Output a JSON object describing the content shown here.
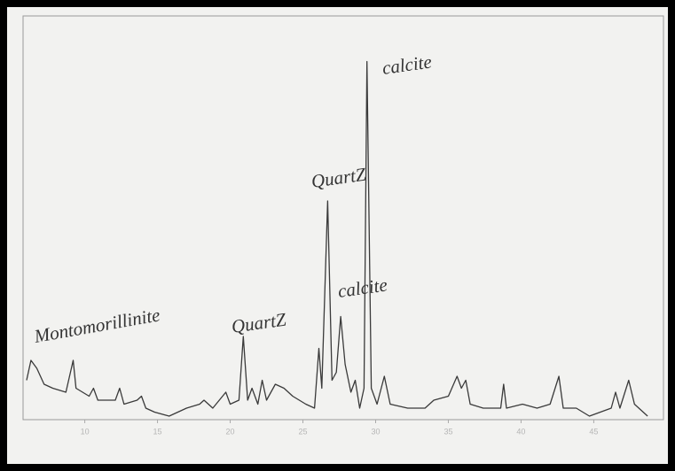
{
  "chart_data": {
    "type": "line",
    "annotations": [
      "Montomorillinite",
      "QuartZ",
      "QuartZ",
      "calcite",
      "calcite"
    ],
    "x": [
      6.0,
      6.3,
      6.7,
      7.2,
      7.8,
      8.7,
      9.2,
      9.4,
      10.3,
      10.6,
      10.9,
      12.1,
      12.4,
      12.7,
      13.6,
      13.9,
      14.2,
      14.8,
      15.8,
      17.0,
      17.9,
      18.2,
      18.8,
      19.7,
      20.0,
      20.6,
      20.9,
      21.2,
      21.5,
      21.9,
      22.2,
      22.5,
      23.1,
      23.7,
      24.3,
      25.2,
      25.8,
      26.1,
      26.3,
      26.7,
      27.0,
      27.3,
      27.6,
      27.9,
      28.3,
      28.6,
      28.9,
      29.2,
      29.4,
      29.7,
      30.1,
      30.6,
      31.0,
      32.2,
      33.4,
      34.0,
      35.0,
      35.6,
      35.9,
      36.2,
      36.5,
      37.4,
      38.6,
      38.8,
      39.0,
      40.1,
      41.1,
      42.0,
      42.6,
      42.9,
      43.8,
      44.7,
      46.2,
      46.5,
      46.8,
      47.4,
      47.8,
      48.7
    ],
    "series": [
      {
        "color": "#3a3a3a",
        "values": [
          9,
          14,
          12,
          8,
          7,
          6,
          14,
          7,
          5,
          7,
          4,
          4,
          7,
          3,
          4,
          5,
          2,
          1,
          0,
          2,
          3,
          4,
          2,
          6,
          3,
          4,
          20,
          4,
          7,
          3,
          9,
          4,
          8,
          7,
          5,
          3,
          2,
          17,
          7,
          54,
          9,
          11,
          25,
          13,
          6,
          9,
          2,
          7,
          89,
          7,
          3,
          10,
          3,
          2,
          2,
          4,
          5,
          10,
          7,
          9,
          3,
          2,
          2,
          8,
          2,
          3,
          2,
          3,
          10,
          2,
          2,
          0,
          2,
          6,
          2,
          9,
          3,
          0
        ]
      }
    ],
    "xlim": [
      6,
      49
    ],
    "ylim": [
      0,
      100
    ],
    "xticks": [
      10,
      15,
      20,
      25,
      30,
      35,
      40,
      45
    ]
  }
}
